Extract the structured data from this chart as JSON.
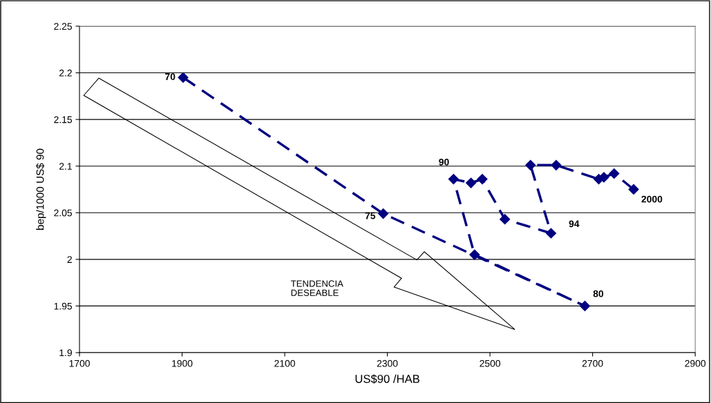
{
  "chart_data": {
    "type": "line",
    "xlabel": "US$90 /HAB",
    "ylabel": "bep/1000 US$ 90",
    "x": [
      1902,
      2292,
      2685,
      2470,
      2429,
      2463,
      2485,
      2529,
      2619,
      2579,
      2629,
      2712,
      2722,
      2742,
      2780
    ],
    "series": [
      {
        "color": "#000080",
        "values": [
          2.195,
          2.049,
          1.95,
          2.005,
          2.086,
          2.082,
          2.086,
          2.043,
          2.028,
          2.101,
          2.101,
          2.086,
          2.088,
          2.092,
          2.075
        ]
      }
    ],
    "xlim": [
      1700,
      2900
    ],
    "xticks": [
      1700,
      1900,
      2100,
      2300,
      2500,
      2700,
      2900
    ],
    "ylim": [
      1.9,
      2.25
    ],
    "yticks": [
      1.9,
      1.95,
      2,
      2.05,
      2.1,
      2.15,
      2.2,
      2.25
    ],
    "grid": "y",
    "marker": "diamond",
    "line_style": "dashed",
    "legend": false,
    "annotations": [
      {
        "text": "70",
        "x": 1902,
        "y": 2.195
      },
      {
        "text": "75",
        "x": 2292,
        "y": 2.049
      },
      {
        "text": "80",
        "x": 2685,
        "y": 1.95
      },
      {
        "text": "90",
        "x": 2429,
        "y": 2.086
      },
      {
        "text": "94",
        "x": 2619,
        "y": 2.028
      },
      {
        "text": "2000",
        "x": 2780,
        "y": 2.075
      },
      "TENDENCIA\nDESEABLE"
    ]
  }
}
